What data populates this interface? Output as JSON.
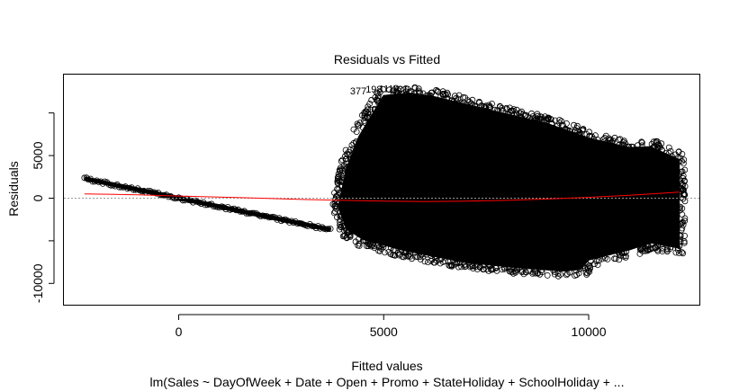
{
  "chart_data": {
    "type": "scatter",
    "title": "Residuals vs Fitted",
    "xlabel": "Fitted values",
    "ylabel": "Residuals",
    "subtitle": "lm(Sales ~ DayOfWeek + Date + Open + Promo + StateHoliday + SchoolHoliday + ...",
    "xlim": [
      -2800,
      12700
    ],
    "ylim": [
      -12500,
      14500
    ],
    "x_ticks": [
      0,
      5000,
      10000
    ],
    "x_tick_labels": [
      "0",
      "5000",
      "10000"
    ],
    "y_ticks": [
      -10000,
      0,
      5000
    ],
    "y_tick_labels": [
      "-10000",
      "0",
      "5000"
    ],
    "grid": false,
    "legend": "none",
    "zero_line": {
      "y": 0,
      "style": "dotted",
      "color": "#999999"
    },
    "diagonal_band": {
      "description_values": [
        [
          -2300,
          2300
        ],
        [
          3700,
          -3700
        ]
      ]
    },
    "cloud_outline": [
      [
        4100,
        3500
      ],
      [
        4400,
        7200
      ],
      [
        5000,
        12000
      ],
      [
        5600,
        12300
      ],
      [
        6200,
        11900
      ],
      [
        7500,
        10400
      ],
      [
        9000,
        8700
      ],
      [
        10000,
        7000
      ],
      [
        11000,
        5900
      ],
      [
        11500,
        6000
      ],
      [
        12200,
        4500
      ],
      [
        12200,
        -5800
      ],
      [
        11500,
        -5200
      ],
      [
        11000,
        -6000
      ],
      [
        10000,
        -7200
      ],
      [
        9800,
        -8300
      ],
      [
        9400,
        -8500
      ],
      [
        8500,
        -8200
      ],
      [
        7000,
        -7500
      ],
      [
        5500,
        -6100
      ],
      [
        4500,
        -4800
      ],
      [
        4100,
        -3600
      ],
      [
        3900,
        -1000
      ]
    ],
    "smooth_line": {
      "color": "#ff0000",
      "x": [
        -2300,
        -1000,
        0,
        1000,
        2000,
        3000,
        4000,
        5000,
        6000,
        7000,
        8000,
        9000,
        10000,
        11000,
        12200
      ],
      "y": [
        500,
        400,
        250,
        120,
        0,
        -150,
        -250,
        -350,
        -400,
        -350,
        -250,
        -100,
        100,
        350,
        700
      ]
    },
    "annotations": [
      {
        "text": "377",
        "x": 4180,
        "y": 12200
      },
      {
        "text": "198",
        "x": 4560,
        "y": 12400
      },
      {
        "text": "1114",
        "x": 4880,
        "y": 12450
      },
      {
        "text": "121",
        "x": 5200,
        "y": 12400
      }
    ],
    "point_color": "#000000"
  }
}
